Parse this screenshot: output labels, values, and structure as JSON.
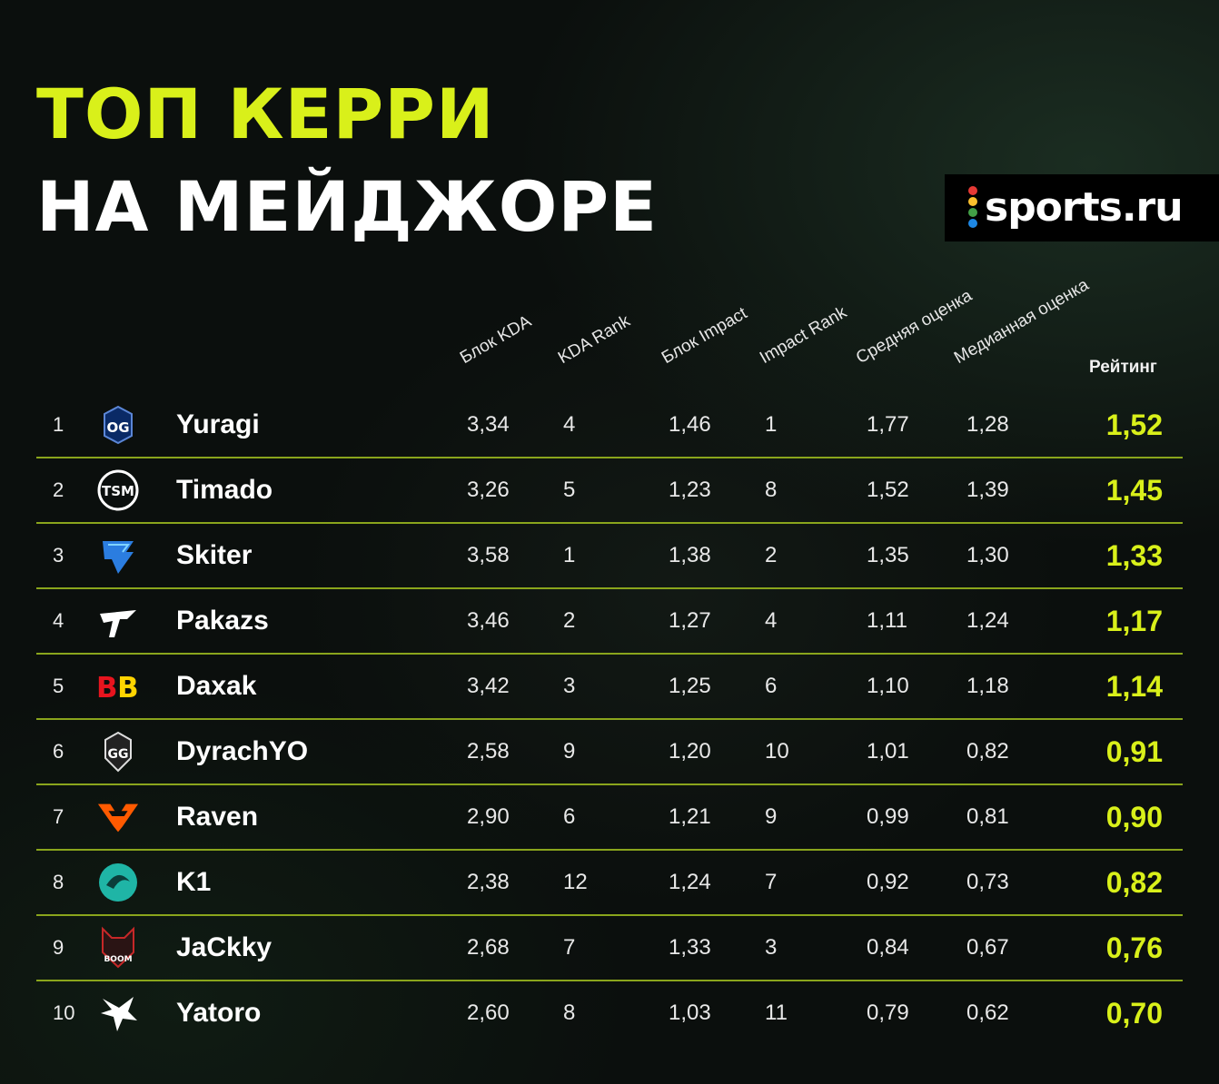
{
  "title": {
    "line1": "ТОП КЕРРИ",
    "line2": "НА МЕЙДЖОРЕ"
  },
  "brand": {
    "name": "sports.ru",
    "dot_colors": [
      "#e53935",
      "#fbc02d",
      "#43a047",
      "#1e88e5",
      "#ec407a"
    ]
  },
  "colors": {
    "accent": "#d9f01a",
    "separator": "#8aa51c",
    "background": "#0b0f0d"
  },
  "headers": {
    "kda_block": "Блок KDA",
    "kda_rank": "KDA Rank",
    "impact_block": "Блок Impact",
    "impact_rank": "Impact Rank",
    "avg": "Средняя оценка",
    "median": "Медианная оценка",
    "rating": "Рейтинг"
  },
  "rows": [
    {
      "rank": "1",
      "team_icon": "og-logo-icon",
      "name": "Yuragi",
      "kda": "3,34",
      "kda_rank": "4",
      "impact": "1,46",
      "impact_rank": "1",
      "avg": "1,77",
      "median": "1,28",
      "rating": "1,52"
    },
    {
      "rank": "2",
      "team_icon": "tsm-logo-icon",
      "name": "Timado",
      "kda": "3,26",
      "kda_rank": "5",
      "impact": "1,23",
      "impact_rank": "8",
      "avg": "1,52",
      "median": "1,39",
      "rating": "1,45"
    },
    {
      "rank": "3",
      "team_icon": "tundra-logo-icon",
      "name": "Skiter",
      "kda": "3,58",
      "kda_rank": "1",
      "impact": "1,38",
      "impact_rank": "2",
      "avg": "1,35",
      "median": "1,30",
      "rating": "1,33"
    },
    {
      "rank": "4",
      "team_icon": "shopify-rebellion-logo-icon",
      "name": "Pakazs",
      "kda": "3,46",
      "kda_rank": "2",
      "impact": "1,27",
      "impact_rank": "4",
      "avg": "1,11",
      "median": "1,24",
      "rating": "1,17"
    },
    {
      "rank": "5",
      "team_icon": "betboom-logo-icon",
      "name": "Daxak",
      "kda": "3,42",
      "kda_rank": "3",
      "impact": "1,25",
      "impact_rank": "6",
      "avg": "1,10",
      "median": "1,18",
      "rating": "1,14"
    },
    {
      "rank": "6",
      "team_icon": "gaimin-gladiators-logo-icon",
      "name": "DyrachYO",
      "kda": "2,58",
      "kda_rank": "9",
      "impact": "1,20",
      "impact_rank": "10",
      "avg": "1,01",
      "median": "0,82",
      "rating": "0,91"
    },
    {
      "rank": "7",
      "team_icon": "fnatic-logo-icon",
      "name": "Raven",
      "kda": "2,90",
      "kda_rank": "6",
      "impact": "1,21",
      "impact_rank": "9",
      "avg": "0,99",
      "median": "0,81",
      "rating": "0,90"
    },
    {
      "rank": "8",
      "team_icon": "beastcoast-logo-icon",
      "name": "K1",
      "kda": "2,38",
      "kda_rank": "12",
      "impact": "1,24",
      "impact_rank": "7",
      "avg": "0,92",
      "median": "0,73",
      "rating": "0,82"
    },
    {
      "rank": "9",
      "team_icon": "boom-logo-icon",
      "name": "JaCkky",
      "kda": "2,68",
      "kda_rank": "7",
      "impact": "1,33",
      "impact_rank": "3",
      "avg": "0,84",
      "median": "0,67",
      "rating": "0,76"
    },
    {
      "rank": "10",
      "team_icon": "team-spirit-logo-icon",
      "name": "Yatoro",
      "kda": "2,60",
      "kda_rank": "8",
      "impact": "1,03",
      "impact_rank": "11",
      "avg": "0,79",
      "median": "0,62",
      "rating": "0,70"
    }
  ]
}
